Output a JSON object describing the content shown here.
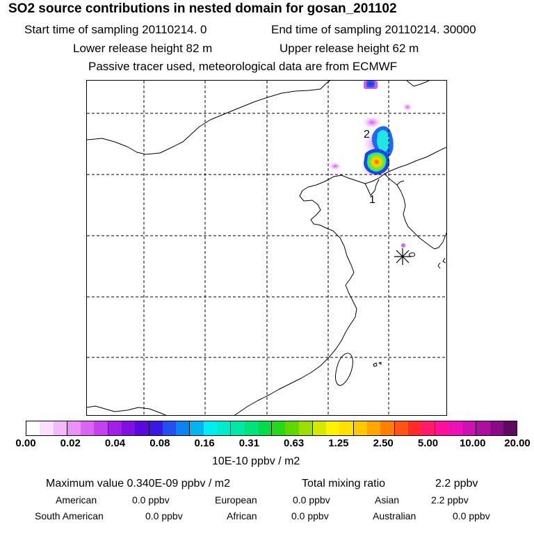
{
  "header": {
    "title": "SO2 source contributions in nested domain for gosan_201102",
    "start_label": "Start time of sampling 20110214.     0",
    "end_label": "End time of sampling 20110214. 30000",
    "lower_label": "Lower release height   82 m",
    "upper_label": "Upper release height   62 m",
    "tracer_note": "Passive tracer used, meteorological data are from ECMWF"
  },
  "map": {
    "markers": [
      {
        "label": "1"
      },
      {
        "label": "2"
      }
    ],
    "receptor": "gosan-receptor-star"
  },
  "colorbar": {
    "swatches": [
      "#ffffff",
      "#fde0ff",
      "#f5b8fb",
      "#eb90f7",
      "#d966f3",
      "#c540ef",
      "#a21fe8",
      "#7f10e2",
      "#5a08dd",
      "#3a17e6",
      "#2251ee",
      "#0a84f0",
      "#00b5ec",
      "#00eef0",
      "#00eccd",
      "#00e8a7",
      "#00e27a",
      "#00dc49",
      "#26d81c",
      "#5ed800",
      "#9bde00",
      "#d5e900",
      "#fff200",
      "#ffe000",
      "#ffc800",
      "#ffa600",
      "#ff7e00",
      "#ff5414",
      "#ff2a2a",
      "#ff1a6b",
      "#ff1199",
      "#ef10b8",
      "#cd11b5",
      "#ad0f9f",
      "#8a0c84",
      "#5e0b5f"
    ],
    "ticks": [
      "0.00",
      "0.02",
      "0.04",
      "0.08",
      "0.16",
      "0.31",
      "0.63",
      "1.25",
      "2.50",
      "5.00",
      "10.00",
      "20.00"
    ],
    "unit_label": "10E-10 ppbv / m2"
  },
  "summary": {
    "max_value": "Maximum value  0.340E-09 ppbv / m2",
    "total_mixing": "Total mixing ratio",
    "total_value": "2.2 ppbv",
    "regions": [
      {
        "name": "American",
        "value": "0.0 ppbv"
      },
      {
        "name": "European",
        "value": "0.0 ppbv"
      },
      {
        "name": "Asian",
        "value": "2.2 ppbv"
      },
      {
        "name": "South American",
        "value": "0.0 ppbv"
      },
      {
        "name": "African",
        "value": "0.0 ppbv"
      },
      {
        "name": "Australian",
        "value": "0.0 ppbv"
      }
    ]
  }
}
